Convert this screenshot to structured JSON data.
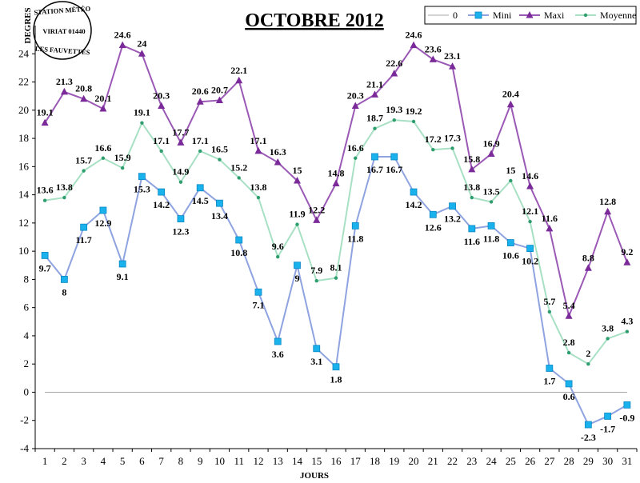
{
  "stamp": {
    "line1": "STATION MÉTÉO",
    "line2": "VIRIAT 01440",
    "line3": "LES FAUVETTES"
  },
  "chart_data": {
    "type": "line",
    "title": "OCTOBRE 2012",
    "xlabel": "JOURS",
    "ylabel": "DEGRES",
    "ylim": [
      -4,
      26
    ],
    "yticks": [
      -4,
      -2,
      0,
      2,
      4,
      6,
      8,
      10,
      12,
      14,
      16,
      18,
      20,
      22,
      24
    ],
    "grid": false,
    "legend_position": "top-right",
    "categories": [
      "1",
      "2",
      "3",
      "4",
      "5",
      "6",
      "7",
      "8",
      "9",
      "10",
      "11",
      "12",
      "13",
      "14",
      "15",
      "16",
      "17",
      "18",
      "19",
      "20",
      "21",
      "22",
      "23",
      "24",
      "25",
      "26",
      "27",
      "28",
      "29",
      "30",
      "31"
    ],
    "series": [
      {
        "name": "0",
        "color": "#a6a6a6",
        "marker": "none",
        "show_labels": false,
        "values": [
          0,
          0,
          0,
          0,
          0,
          0,
          0,
          0,
          0,
          0,
          0,
          0,
          0,
          0,
          0,
          0,
          0,
          0,
          0,
          0,
          0,
          0,
          0,
          0,
          0,
          0,
          0,
          0,
          0,
          0,
          0
        ]
      },
      {
        "name": "Mini",
        "color": "#8ea3e0",
        "marker": "square",
        "marker_color": "#1ab2ec",
        "show_labels": true,
        "values": [
          9.7,
          8,
          11.7,
          12.9,
          9.1,
          15.3,
          14.2,
          12.3,
          14.5,
          13.4,
          10.8,
          7.1,
          3.6,
          9,
          3.1,
          1.8,
          11.8,
          16.7,
          16.7,
          14.2,
          12.6,
          13.2,
          11.6,
          11.8,
          10.6,
          10.2,
          1.7,
          0.6,
          -2.3,
          -1.7,
          -0.9
        ]
      },
      {
        "name": "Maxi",
        "color": "#9b59b6",
        "marker": "triangle",
        "marker_color": "#7a2a99",
        "show_labels": true,
        "values": [
          19.1,
          21.3,
          20.8,
          20.1,
          24.6,
          24,
          20.3,
          17.7,
          20.6,
          20.7,
          22.1,
          17.1,
          16.3,
          15,
          12.2,
          14.8,
          20.3,
          21.1,
          22.6,
          24.6,
          23.6,
          23.1,
          15.8,
          16.9,
          20.4,
          14.6,
          11.6,
          5.4,
          8.8,
          12.8,
          9.2
        ]
      },
      {
        "name": "Moyenne",
        "color": "#a8e0c4",
        "marker": "dot",
        "marker_color": "#2e9e6e",
        "show_labels": true,
        "values": [
          13.6,
          13.8,
          15.7,
          16.6,
          15.9,
          19.1,
          17.1,
          14.9,
          17.1,
          16.5,
          15.2,
          13.8,
          9.6,
          11.9,
          7.9,
          8.1,
          16.6,
          18.7,
          19.3,
          19.2,
          17.2,
          17.3,
          13.8,
          13.5,
          15,
          12.1,
          5.7,
          2.8,
          2,
          3.8,
          4.3
        ]
      }
    ]
  }
}
